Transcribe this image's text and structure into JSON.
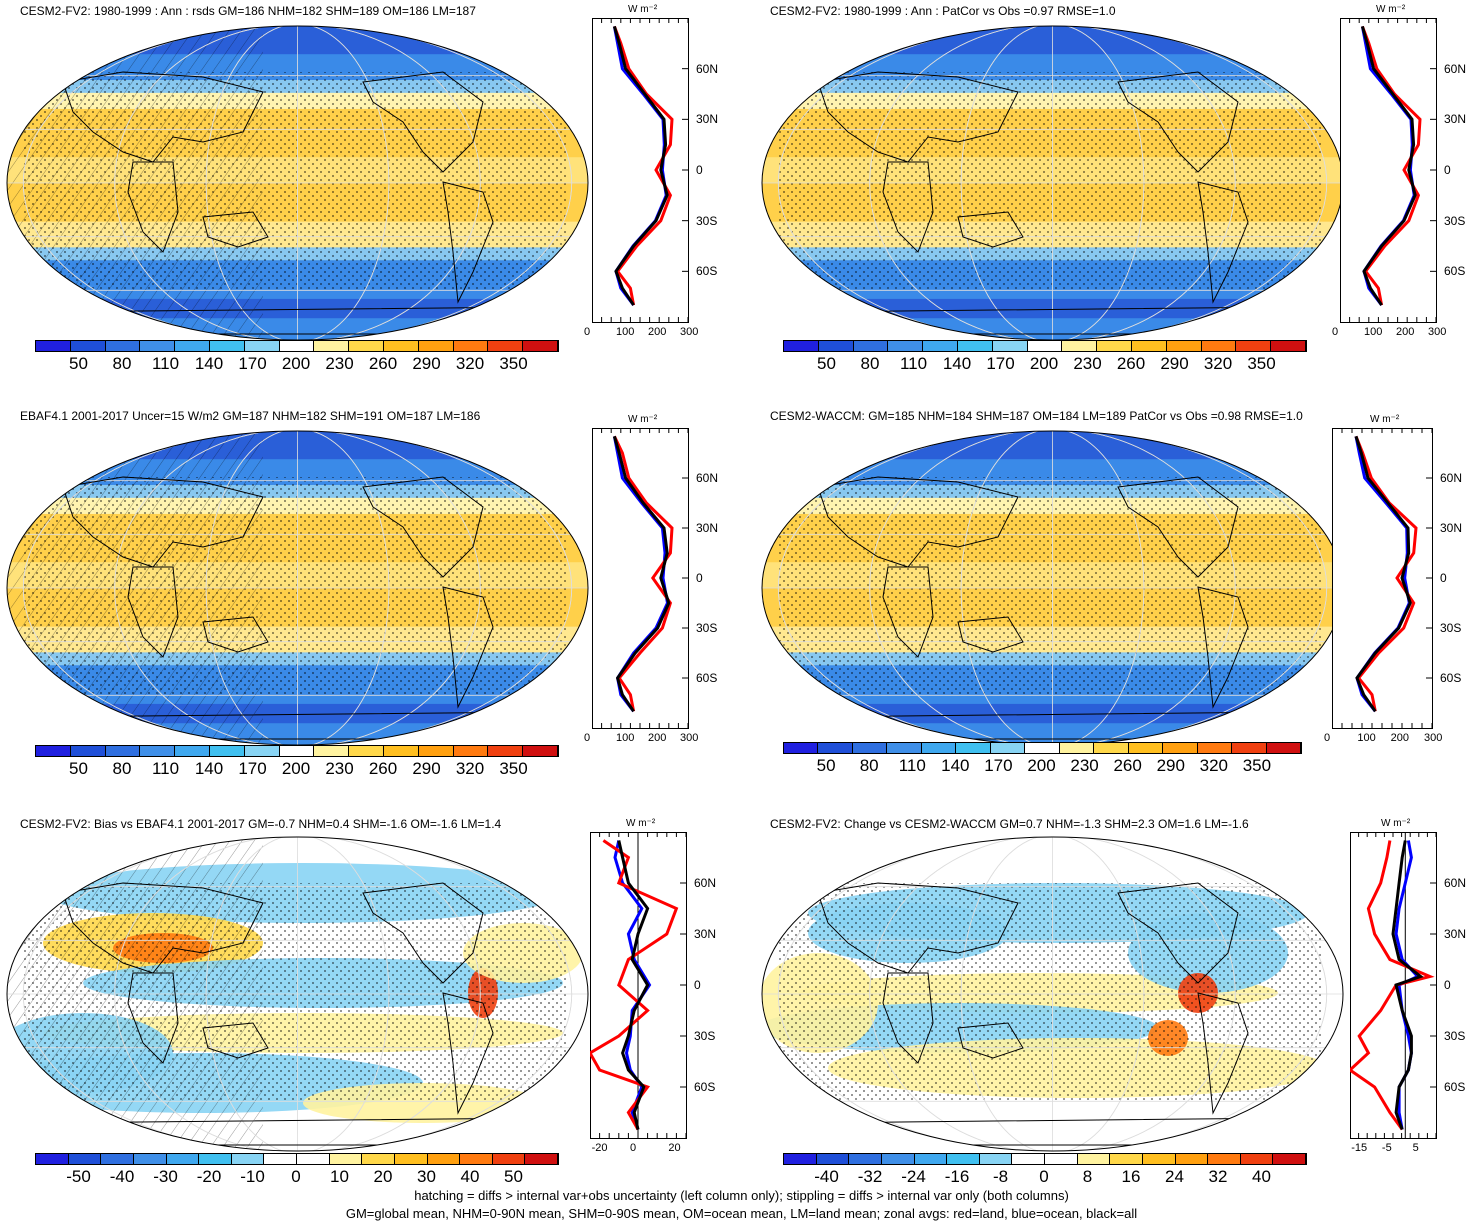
{
  "panels": [
    {
      "title": "CESM2-FV2: 1980-1999 : Ann : rsds GM=186 NHM=182 SHM=189 OM=186 LM=187",
      "colorbar": [
        "50",
        "80",
        "110",
        "140",
        "170",
        "200",
        "230",
        "260",
        "290",
        "320",
        "350"
      ],
      "zonal_ticks": [
        "0",
        "100",
        "200",
        "300"
      ],
      "hatched": true,
      "kind": "clim"
    },
    {
      "title": "CESM2-FV2: 1980-1999 : Ann : PatCor vs Obs =0.97 RMSE=1.0",
      "colorbar": [
        "50",
        "80",
        "110",
        "140",
        "170",
        "200",
        "230",
        "260",
        "290",
        "320",
        "350"
      ],
      "zonal_ticks": [
        "0",
        "100",
        "200",
        "300"
      ],
      "hatched": false,
      "kind": "clim"
    },
    {
      "title": "EBAF4.1 2001-2017 Uncer=15 W/m2 GM=187 NHM=182 SHM=191 OM=187 LM=186",
      "colorbar": [
        "50",
        "80",
        "110",
        "140",
        "170",
        "200",
        "230",
        "260",
        "290",
        "320",
        "350"
      ],
      "zonal_ticks": [
        "0",
        "100",
        "200",
        "300"
      ],
      "hatched": true,
      "kind": "clim"
    },
    {
      "title": "CESM2-WACCM: GM=185 NHM=184 SHM=187 OM=184 LM=189 PatCor vs Obs =0.98 RMSE=1.0",
      "colorbar": [
        "50",
        "80",
        "110",
        "140",
        "170",
        "200",
        "230",
        "260",
        "290",
        "320",
        "350"
      ],
      "zonal_ticks": [
        "0",
        "100",
        "200",
        "300"
      ],
      "hatched": false,
      "kind": "clim"
    },
    {
      "title": "CESM2-FV2: Bias vs EBAF4.1 2001-2017 GM=-0.7 NHM=0.4 SHM=-1.6 OM=-1.6 LM=1.4",
      "colorbar": [
        "-50",
        "-40",
        "-30",
        "-20",
        "-10",
        "0",
        "10",
        "20",
        "30",
        "40",
        "50"
      ],
      "zonal_ticks": [
        "-20",
        "0",
        "20"
      ],
      "hatched": true,
      "kind": "diff"
    },
    {
      "title": "CESM2-FV2: Change vs CESM2-WACCM GM=0.7 NHM=-1.3 SHM=2.3 OM=1.6 LM=-1.6",
      "colorbar": [
        "-40",
        "-32",
        "-24",
        "-16",
        "-8",
        "0",
        "8",
        "16",
        "24",
        "32",
        "40"
      ],
      "zonal_ticks": [
        "-15",
        "-5",
        "5"
      ],
      "hatched": false,
      "kind": "diff"
    }
  ],
  "lat_labels": [
    "60N",
    "30N",
    "0",
    "30S",
    "60S"
  ],
  "unit_label": "W m⁻²",
  "footer": {
    "line1": "hatching = diffs > internal var+obs uncertainty (left column only); stippling = diffs > internal var only (both columns)",
    "line2": "GM=global mean, NHM=0-90N mean, SHM=0-90S mean, OM=ocean mean, LM=land mean; zonal avgs: red=land, blue=ocean, black=all"
  },
  "colors": {
    "clim_palette": [
      "#2020e0",
      "#1f4fd8",
      "#2f6fe0",
      "#3f8fe8",
      "#3fa8ef",
      "#40c0f0",
      "#88d4f4",
      "#ffffff",
      "#fff3a0",
      "#ffd84a",
      "#ffbf20",
      "#ffa010",
      "#ff7a10",
      "#f04010",
      "#d01010"
    ],
    "diff_palette": [
      "#2020e0",
      "#1f4fd8",
      "#2f6fe0",
      "#3f8fe8",
      "#3fa8ef",
      "#40c0f0",
      "#88d4f4",
      "#ffffff",
      "#ffffff",
      "#fff3a0",
      "#ffd84a",
      "#ffbf20",
      "#ffa010",
      "#ff7a10",
      "#f04010",
      "#d01010"
    ],
    "land_line": "#ff0000",
    "ocean_line": "#0000ff",
    "all_line": "#000000"
  },
  "chart_data": [
    {
      "type": "heatmap",
      "title": "CESM2-FV2: 1980-1999 : Ann : rsds GM=186 NHM=182 SHM=189 OM=186 LM=187",
      "colorbar_ticks": [
        50,
        80,
        110,
        140,
        170,
        200,
        230,
        260,
        290,
        320,
        350
      ],
      "zonal": {
        "lat": [
          -80,
          -70,
          -60,
          -45,
          -30,
          -15,
          0,
          15,
          30,
          45,
          60,
          75,
          85
        ],
        "all": [
          130,
          95,
          75,
          130,
          200,
          235,
          215,
          230,
          225,
          165,
          105,
          85,
          70
        ],
        "land": [
          130,
          120,
          80,
          140,
          215,
          245,
          200,
          245,
          250,
          170,
          115,
          90,
          70
        ],
        "ocean": [
          130,
          90,
          75,
          128,
          198,
          232,
          220,
          226,
          222,
          160,
          95,
          80,
          70
        ]
      },
      "xlim": [
        0,
        300
      ],
      "ylim": [
        -90,
        90
      ]
    },
    {
      "type": "heatmap",
      "title": "CESM2-FV2: 1980-1999 : Ann : PatCor vs Obs =0.97 RMSE=1.0",
      "colorbar_ticks": [
        50,
        80,
        110,
        140,
        170,
        200,
        230,
        260,
        290,
        320,
        350
      ],
      "zonal": {
        "lat": [
          -80,
          -70,
          -60,
          -45,
          -30,
          -15,
          0,
          15,
          30,
          45,
          60,
          75,
          85
        ],
        "all": [
          130,
          95,
          75,
          130,
          200,
          235,
          215,
          230,
          225,
          165,
          105,
          85,
          70
        ],
        "land": [
          130,
          120,
          80,
          140,
          215,
          245,
          200,
          245,
          250,
          170,
          115,
          90,
          70
        ],
        "ocean": [
          130,
          90,
          75,
          128,
          198,
          232,
          220,
          226,
          222,
          160,
          95,
          80,
          70
        ]
      },
      "xlim": [
        0,
        300
      ],
      "ylim": [
        -90,
        90
      ]
    },
    {
      "type": "heatmap",
      "title": "EBAF4.1 2001-2017 Uncer=15 W/m2 GM=187 NHM=182 SHM=191 OM=187 LM=186",
      "colorbar_ticks": [
        50,
        80,
        110,
        140,
        170,
        200,
        230,
        260,
        290,
        320,
        350
      ],
      "zonal": {
        "lat": [
          -80,
          -70,
          -60,
          -45,
          -30,
          -15,
          0,
          15,
          30,
          45,
          60,
          75,
          85
        ],
        "all": [
          130,
          95,
          80,
          135,
          205,
          240,
          215,
          235,
          225,
          160,
          105,
          85,
          70
        ],
        "land": [
          130,
          120,
          85,
          150,
          220,
          245,
          190,
          245,
          250,
          170,
          115,
          95,
          70
        ],
        "ocean": [
          130,
          90,
          80,
          130,
          200,
          236,
          222,
          228,
          220,
          155,
          95,
          80,
          70
        ]
      },
      "xlim": [
        0,
        300
      ],
      "ylim": [
        -90,
        90
      ]
    },
    {
      "type": "heatmap",
      "title": "CESM2-WACCM: GM=185 NHM=184 SHM=187 OM=184 LM=189 PatCor vs Obs =0.98 RMSE=1.0",
      "colorbar_ticks": [
        50,
        80,
        110,
        140,
        170,
        200,
        230,
        260,
        290,
        320,
        350
      ],
      "zonal": {
        "lat": [
          -80,
          -70,
          -60,
          -45,
          -30,
          -15,
          0,
          15,
          30,
          45,
          60,
          75,
          85
        ],
        "all": [
          130,
          95,
          75,
          130,
          200,
          235,
          210,
          230,
          228,
          168,
          108,
          88,
          72
        ],
        "land": [
          130,
          120,
          80,
          140,
          215,
          245,
          195,
          245,
          252,
          172,
          118,
          92,
          72
        ],
        "ocean": [
          130,
          90,
          75,
          128,
          198,
          232,
          218,
          226,
          224,
          162,
          98,
          82,
          72
        ]
      },
      "xlim": [
        0,
        300
      ],
      "ylim": [
        -90,
        90
      ]
    },
    {
      "type": "heatmap",
      "title": "CESM2-FV2: Bias vs EBAF4.1 2001-2017 GM=-0.7 NHM=0.4 SHM=-1.6 OM=-1.6 LM=1.4",
      "colorbar_ticks": [
        -50,
        -40,
        -30,
        -20,
        -10,
        0,
        10,
        20,
        30,
        40,
        50
      ],
      "zonal": {
        "lat": [
          -85,
          -75,
          -60,
          -50,
          -40,
          -30,
          -15,
          0,
          15,
          30,
          45,
          60,
          75,
          85
        ],
        "all": [
          0,
          -2,
          3,
          -5,
          -8,
          -5,
          -2,
          5,
          -3,
          0,
          5,
          -5,
          -8,
          -10
        ],
        "land": [
          0,
          -5,
          5,
          -20,
          -25,
          -10,
          5,
          -10,
          -5,
          15,
          20,
          -10,
          -5,
          -18
        ],
        "ocean": [
          0,
          -3,
          2,
          -4,
          -6,
          -4,
          -3,
          6,
          -2,
          -5,
          2,
          -8,
          -12,
          -10
        ]
      },
      "xlim": [
        -25,
        25
      ],
      "ylim": [
        -90,
        90
      ]
    },
    {
      "type": "heatmap",
      "title": "CESM2-FV2: Change vs CESM2-WACCM GM=0.7 NHM=-1.3 SHM=2.3 OM=1.6 LM=-1.6",
      "colorbar_ticks": [
        -40,
        -32,
        -24,
        -16,
        -8,
        0,
        8,
        16,
        24,
        32,
        40
      ],
      "zonal": {
        "lat": [
          -85,
          -75,
          -60,
          -50,
          -40,
          -30,
          -15,
          0,
          5,
          15,
          30,
          45,
          60,
          75,
          85
        ],
        "all": [
          -1,
          -3,
          -2,
          1,
          2,
          2,
          -1,
          -3,
          5,
          -2,
          -4,
          -3,
          -2,
          -1,
          0
        ],
        "land": [
          -1,
          -5,
          -10,
          -18,
          -12,
          -15,
          -8,
          -3,
          8,
          -5,
          -10,
          -12,
          -8,
          -6,
          -5
        ],
        "ocean": [
          -1,
          -2,
          -2,
          1,
          2,
          1,
          -1,
          -2,
          4,
          -1,
          -3,
          -2,
          0,
          2,
          1
        ]
      },
      "xlim": [
        -18,
        10
      ],
      "ylim": [
        -90,
        90
      ]
    }
  ]
}
